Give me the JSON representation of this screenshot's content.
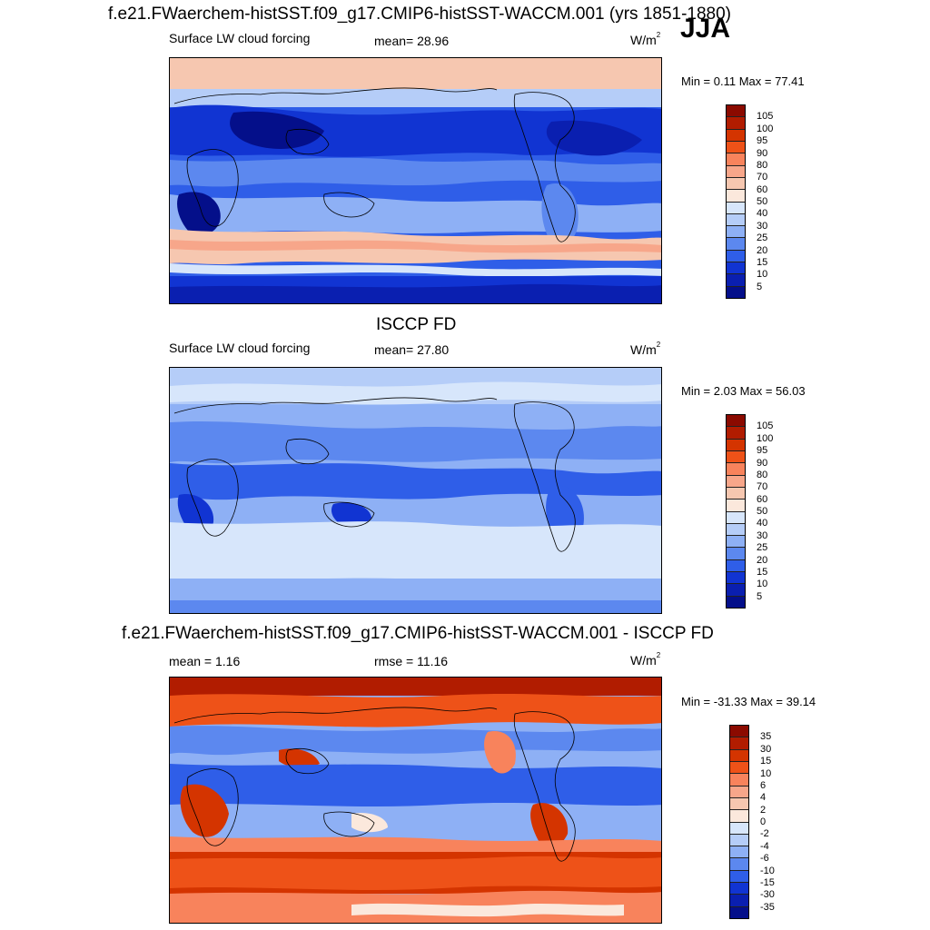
{
  "season": "JJA",
  "panels": [
    {
      "title": "f.e21.FWaerchem-histSST.f09_g17.CMIP6-histSST-WACCM.001 (yrs 1851-1880)",
      "left_label": "Surface LW cloud forcing",
      "center_label": "mean=  28.96",
      "units": "W/m",
      "units_exp": "2",
      "minmax": "Min =   0.11 Max =  77.41",
      "colorbar_labels": [
        "105",
        "100",
        "95",
        "90",
        "80",
        "70",
        "60",
        "50",
        "40",
        "30",
        "25",
        "20",
        "15",
        "10",
        "5"
      ]
    },
    {
      "title": "ISCCP FD",
      "left_label": "Surface LW cloud forcing",
      "center_label": "mean=  27.80",
      "units": "W/m",
      "units_exp": "2",
      "minmax": "Min =   2.03 Max =  56.03",
      "colorbar_labels": [
        "105",
        "100",
        "95",
        "90",
        "80",
        "70",
        "60",
        "50",
        "40",
        "30",
        "25",
        "20",
        "15",
        "10",
        "5"
      ]
    },
    {
      "title": "f.e21.FWaerchem-histSST.f09_g17.CMIP6-histSST-WACCM.001 - ISCCP FD",
      "left_label": "mean =   1.16",
      "center_label": "rmse =  11.16",
      "units": "W/m",
      "units_exp": "2",
      "minmax": "Min = -31.33 Max =  39.14",
      "colorbar_labels": [
        "35",
        "30",
        "15",
        "10",
        "6",
        "4",
        "2",
        "0",
        "-2",
        "-4",
        "-6",
        "-10",
        "-15",
        "-30",
        "-35"
      ]
    }
  ],
  "colors": {
    "abs_scale": [
      "#8b0a00",
      "#b11c00",
      "#d43400",
      "#ee5218",
      "#f8835c",
      "#f7a68a",
      "#f6c7b0",
      "#fbe8dc",
      "#d7e6fb",
      "#b5cdf8",
      "#8eb0f5",
      "#5c88ef",
      "#2f5ee8",
      "#1134d2",
      "#0a1fb0",
      "#040f8a"
    ],
    "diff_scale": [
      "#8b0a00",
      "#b11c00",
      "#d43400",
      "#ee5218",
      "#f8835c",
      "#f7a68a",
      "#f6c7b0",
      "#fbe8dc",
      "#d7e6fb",
      "#b5cdf8",
      "#8eb0f5",
      "#5c88ef",
      "#2f5ee8",
      "#1134d2",
      "#0a1fb0",
      "#040f8a"
    ],
    "coastline": "#000000"
  }
}
